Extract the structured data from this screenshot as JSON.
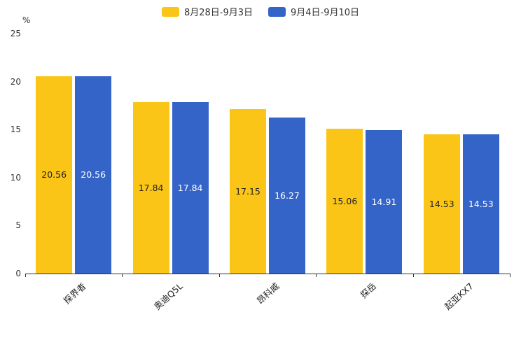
{
  "legend": {
    "items": [
      {
        "label": "8月28日-9月3日",
        "color": "#FBC518"
      },
      {
        "label": "9月4日-9月10日",
        "color": "#3564C9"
      }
    ]
  },
  "y_axis": {
    "unit": "%",
    "ticks": [
      0,
      5,
      10,
      15,
      20,
      25
    ]
  },
  "chart_data": {
    "type": "bar",
    "title": "",
    "categories": [
      "探界者",
      "奥迪Q5L",
      "昂科威",
      "探岳",
      "起亚KX7"
    ],
    "series": [
      {
        "name": "8月28日-9月3日",
        "color": "#FBC518",
        "label_color": "#222222",
        "values": [
          20.56,
          17.84,
          17.15,
          15.06,
          14.53
        ]
      },
      {
        "name": "9月4日-9月10日",
        "color": "#3564C9",
        "label_color": "#FFFFFF",
        "values": [
          20.56,
          17.84,
          16.27,
          14.91,
          14.53
        ]
      }
    ],
    "xlabel": "",
    "ylabel": "%",
    "ylim": [
      0,
      25
    ],
    "grid": false,
    "legend_position": "top"
  }
}
